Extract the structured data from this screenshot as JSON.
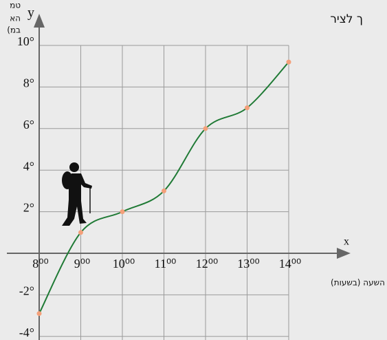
{
  "chart_data": {
    "type": "line",
    "annotations": [
      "טמ",
      "הא",
      "(במ",
      "ך לציר"
    ],
    "y_label": "y",
    "x_label": "x",
    "x_title": "השעה (בשעות)",
    "x": [
      8,
      9,
      10,
      11,
      12,
      13,
      14
    ],
    "series": [
      {
        "color": "#1f7a35",
        "marker_color": "#f4a07a",
        "values": [
          -2.9,
          1,
          2,
          3,
          6,
          7,
          9.2
        ]
      }
    ],
    "xlim": [
      8,
      14
    ],
    "ylim": [
      -4.2,
      10
    ],
    "xticks": [
      {
        "value": 8,
        "label": "8⁰⁰"
      },
      {
        "value": 9,
        "label": "9⁰⁰"
      },
      {
        "value": 10,
        "label": "10⁰⁰"
      },
      {
        "value": 11,
        "label": "11⁰⁰"
      },
      {
        "value": 12,
        "label": "12⁰⁰"
      },
      {
        "value": 13,
        "label": "13⁰⁰"
      },
      {
        "value": 14,
        "label": "14⁰⁰"
      }
    ],
    "yticks": [
      {
        "value": 10,
        "label": "10°"
      },
      {
        "value": 8,
        "label": "8°"
      },
      {
        "value": 6,
        "label": "6°"
      },
      {
        "value": 4,
        "label": "4°"
      },
      {
        "value": 2,
        "label": "2°"
      },
      {
        "value": -2,
        "label": "-2°"
      },
      {
        "value": -4,
        "label": "-4°"
      }
    ],
    "grid": true
  }
}
